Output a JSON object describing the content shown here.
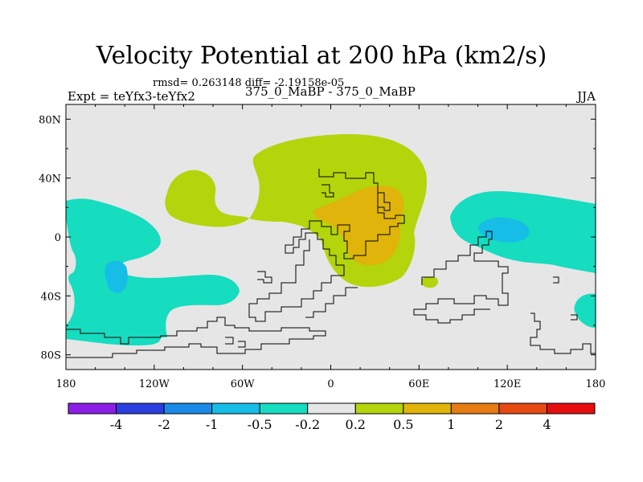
{
  "header": {
    "title": "Velocity Potential at 200 hPa (km2/s)",
    "stats": "rmsd= 0.263148 diff= -2.19158e-05",
    "left_subtitle": "Expt = teYfx3-teYfx2",
    "center_subtitle": "375_0_MaBP - 375_0_MaBP",
    "right_subtitle": "JJA"
  },
  "chart_data": {
    "type": "heatmap",
    "title": "Velocity Potential at 200 hPa (km2/s)",
    "xlabel": "",
    "ylabel": "",
    "xlim": [
      -180,
      180
    ],
    "ylim": [
      -90,
      90
    ],
    "x_ticks": [
      {
        "value": -180,
        "label": "180"
      },
      {
        "value": -120,
        "label": "120W"
      },
      {
        "value": -60,
        "label": "60W"
      },
      {
        "value": 0,
        "label": "0"
      },
      {
        "value": 60,
        "label": "60E"
      },
      {
        "value": 120,
        "label": "120E"
      },
      {
        "value": 180,
        "label": "180"
      }
    ],
    "y_ticks": [
      {
        "value": 80,
        "label": "80N"
      },
      {
        "value": 40,
        "label": "40N"
      },
      {
        "value": 0,
        "label": "0"
      },
      {
        "value": -40,
        "label": "40S"
      },
      {
        "value": -80,
        "label": "80S"
      }
    ],
    "colorbar": {
      "colors": [
        "#8a1ee6",
        "#2b3fe0",
        "#1a8ae6",
        "#16bde6",
        "#16dcc0",
        "#e6e6e6",
        "#b4d40c",
        "#e0b40a",
        "#e67c12",
        "#e64a12",
        "#e60e0e"
      ],
      "labels": [
        "-4",
        "-2",
        "-1",
        "-0.5",
        "-0.2",
        "0.2",
        "0.5",
        "1",
        "2",
        "4"
      ]
    },
    "regions": [
      {
        "name": "north-africa-asia-positive",
        "level": 0.5,
        "color": "#b4d40c"
      },
      {
        "name": "north-atlantic-positive",
        "level": 0.5,
        "color": "#b4d40c"
      },
      {
        "name": "africa-core-positive",
        "level": 1,
        "color": "#e0b40a"
      },
      {
        "name": "south-atlantic-small-positive",
        "level": 0.5,
        "color": "#b4d40c"
      },
      {
        "name": "east-pacific-negative",
        "level": -0.2,
        "color": "#16dcc0"
      },
      {
        "name": "east-pacific-core-negative",
        "level": -0.5,
        "color": "#16bde6"
      },
      {
        "name": "west-pacific-negative",
        "level": -0.2,
        "color": "#16dcc0"
      },
      {
        "name": "west-pacific-core-negative",
        "level": -0.5,
        "color": "#16bde6"
      },
      {
        "name": "southeast-edge-negative",
        "level": -0.2,
        "color": "#16dcc0"
      },
      {
        "name": "western-edge-negative",
        "level": -0.2,
        "color": "#16dcc0"
      }
    ]
  }
}
